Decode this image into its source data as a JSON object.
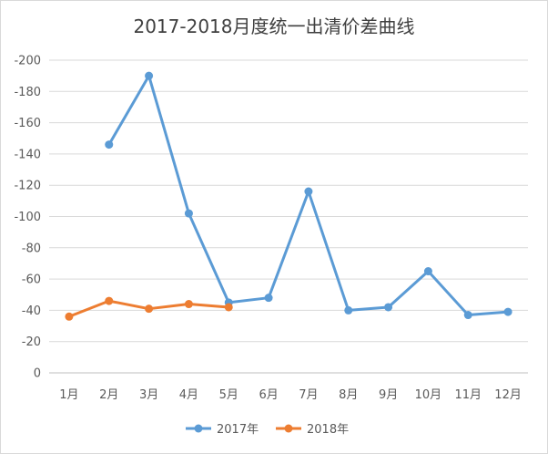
{
  "chart_data": {
    "type": "line",
    "title": "2017-2018月度统一出清价差曲线",
    "categories": [
      "1月",
      "2月",
      "3月",
      "4月",
      "5月",
      "6月",
      "7月",
      "8月",
      "9月",
      "10月",
      "11月",
      "12月"
    ],
    "y_ticks": [
      "0",
      "-20",
      "-40",
      "-60",
      "-80",
      "-100",
      "-120",
      "-140",
      "-160",
      "-180",
      "-200"
    ],
    "ylim": [
      0,
      -200
    ],
    "y_inverted": true,
    "grid": true,
    "legend_position": "bottom",
    "series": [
      {
        "name": "2017年",
        "color": "#5b9bd5",
        "values": [
          null,
          -146,
          -190,
          -102,
          -45,
          -48,
          -116,
          -40,
          -42,
          -65,
          -37,
          -39
        ]
      },
      {
        "name": "2018年",
        "color": "#ed7d31",
        "values": [
          -36,
          -46,
          -41,
          -44,
          -42,
          null,
          null,
          null,
          null,
          null,
          null,
          null
        ]
      }
    ]
  }
}
